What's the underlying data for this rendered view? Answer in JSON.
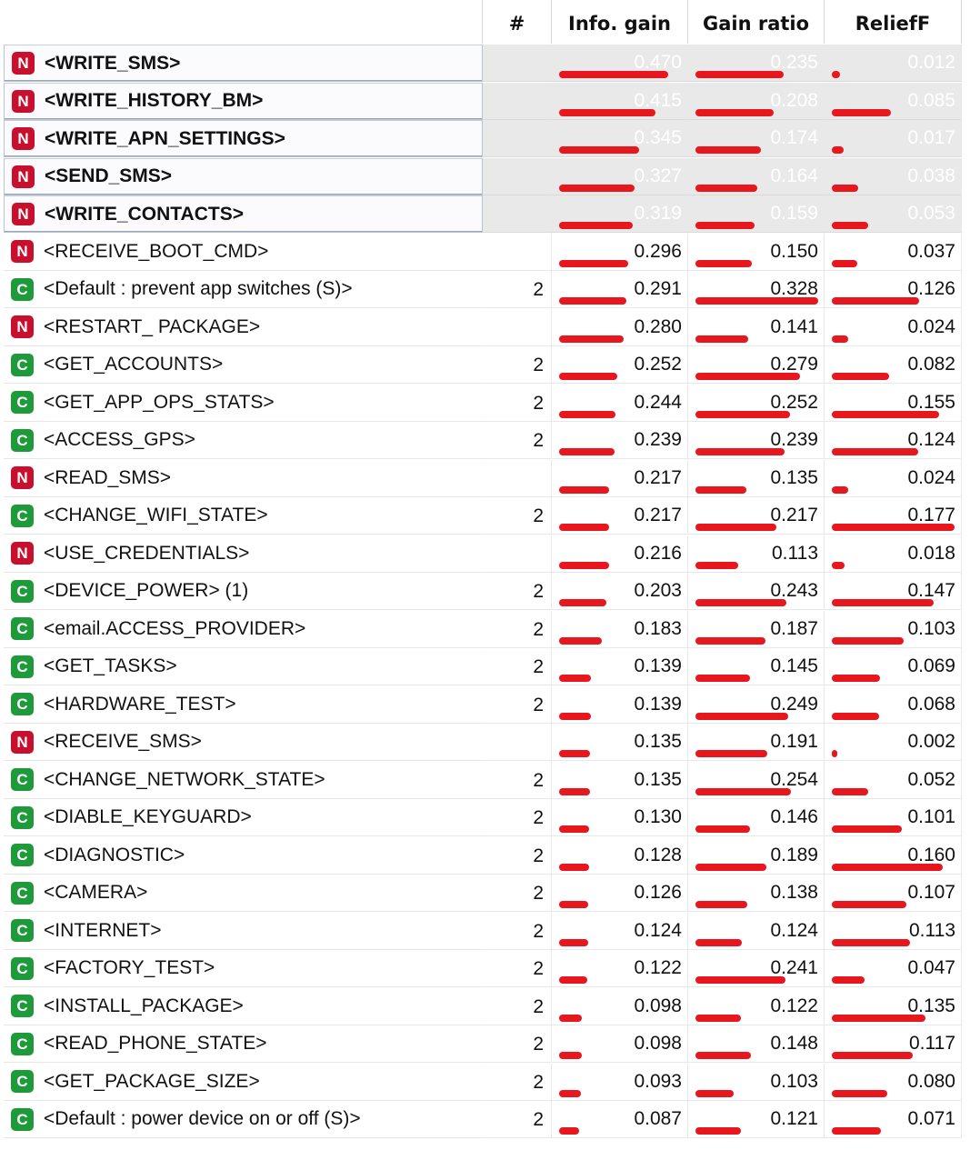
{
  "headers": {
    "name": "",
    "count": "#",
    "info_gain": "Info. gain",
    "gain_ratio": "Gain ratio",
    "relieff": "ReliefF"
  },
  "colors": {
    "bar": "#e8171d",
    "badge_N": "#c8102e",
    "badge_C": "#1f9a3b"
  },
  "rows": [
    {
      "badge": "N",
      "label": "<WRITE_SMS>",
      "count": "",
      "info_gain": "0.470",
      "gain_ratio": "0.235",
      "relieff": "0.012",
      "selected": true
    },
    {
      "badge": "N",
      "label": "<WRITE_HISTORY_BM>",
      "count": "",
      "info_gain": "0.415",
      "gain_ratio": "0.208",
      "relieff": "0.085",
      "selected": true
    },
    {
      "badge": "N",
      "label": "<WRITE_APN_SETTINGS>",
      "count": "",
      "info_gain": "0.345",
      "gain_ratio": "0.174",
      "relieff": "0.017",
      "selected": true
    },
    {
      "badge": "N",
      "label": "<SEND_SMS>",
      "count": "",
      "info_gain": "0.327",
      "gain_ratio": "0.164",
      "relieff": "0.038",
      "selected": true
    },
    {
      "badge": "N",
      "label": "<WRITE_CONTACTS>",
      "count": "",
      "info_gain": "0.319",
      "gain_ratio": "0.159",
      "relieff": "0.053",
      "selected": true
    },
    {
      "badge": "N",
      "label": "<RECEIVE_BOOT_CMD>",
      "count": "",
      "info_gain": "0.296",
      "gain_ratio": "0.150",
      "relieff": "0.037"
    },
    {
      "badge": "C",
      "label": "<Default : prevent app switches (S)>",
      "count": "2",
      "info_gain": "0.291",
      "gain_ratio": "0.328",
      "relieff": "0.126"
    },
    {
      "badge": "N",
      "label": "<RESTART_ PACKAGE>",
      "count": "",
      "info_gain": "0.280",
      "gain_ratio": "0.141",
      "relieff": "0.024"
    },
    {
      "badge": "C",
      "label": "<GET_ACCOUNTS>",
      "count": "2",
      "info_gain": "0.252",
      "gain_ratio": "0.279",
      "relieff": "0.082"
    },
    {
      "badge": "C",
      "label": "<GET_APP_OPS_STATS>",
      "count": "2",
      "info_gain": "0.244",
      "gain_ratio": "0.252",
      "relieff": "0.155"
    },
    {
      "badge": "C",
      "label": "<ACCESS_GPS>",
      "count": "2",
      "info_gain": "0.239",
      "gain_ratio": "0.239",
      "relieff": "0.124"
    },
    {
      "badge": "N",
      "label": "<READ_SMS>",
      "count": "",
      "info_gain": "0.217",
      "gain_ratio": "0.135",
      "relieff": "0.024"
    },
    {
      "badge": "C",
      "label": "<CHANGE_WIFI_STATE>",
      "count": "2",
      "info_gain": "0.217",
      "gain_ratio": "0.217",
      "relieff": "0.177"
    },
    {
      "badge": "N",
      "label": "<USE_CREDENTIALS>",
      "count": "",
      "info_gain": "0.216",
      "gain_ratio": "0.113",
      "relieff": "0.018"
    },
    {
      "badge": "C",
      "label": "<DEVICE_POWER> (1)",
      "count": "2",
      "info_gain": "0.203",
      "gain_ratio": "0.243",
      "relieff": "0.147"
    },
    {
      "badge": "C",
      "label": "<email.ACCESS_PROVIDER>",
      "count": "2",
      "info_gain": "0.183",
      "gain_ratio": "0.187",
      "relieff": "0.103"
    },
    {
      "badge": "C",
      "label": "<GET_TASKS>",
      "count": "2",
      "info_gain": "0.139",
      "gain_ratio": "0.145",
      "relieff": "0.069"
    },
    {
      "badge": "C",
      "label": "<HARDWARE_TEST>",
      "count": "2",
      "info_gain": "0.139",
      "gain_ratio": "0.249",
      "relieff": "0.068"
    },
    {
      "badge": "N",
      "label": "<RECEIVE_SMS>",
      "count": "",
      "info_gain": "0.135",
      "gain_ratio": "0.191",
      "relieff": "0.002"
    },
    {
      "badge": "C",
      "label": "<CHANGE_NETWORK_STATE>",
      "count": "2",
      "info_gain": "0.135",
      "gain_ratio": "0.254",
      "relieff": "0.052"
    },
    {
      "badge": "C",
      "label": "<DIABLE_KEYGUARD>",
      "count": "2",
      "info_gain": "0.130",
      "gain_ratio": "0.146",
      "relieff": "0.101"
    },
    {
      "badge": "C",
      "label": "<DIAGNOSTIC>",
      "count": "2",
      "info_gain": "0.128",
      "gain_ratio": "0.189",
      "relieff": "0.160"
    },
    {
      "badge": "C",
      "label": "<CAMERA>",
      "count": "2",
      "info_gain": "0.126",
      "gain_ratio": "0.138",
      "relieff": "0.107"
    },
    {
      "badge": "C",
      "label": "<INTERNET>",
      "count": "2",
      "info_gain": "0.124",
      "gain_ratio": "0.124",
      "relieff": "0.113"
    },
    {
      "badge": "C",
      "label": "<FACTORY_TEST>",
      "count": "2",
      "info_gain": "0.122",
      "gain_ratio": "0.241",
      "relieff": "0.047"
    },
    {
      "badge": "C",
      "label": "<INSTALL_PACKAGE>",
      "count": "2",
      "info_gain": "0.098",
      "gain_ratio": "0.122",
      "relieff": "0.135"
    },
    {
      "badge": "C",
      "label": "<READ_PHONE_STATE>",
      "count": "2",
      "info_gain": "0.098",
      "gain_ratio": "0.148",
      "relieff": "0.117"
    },
    {
      "badge": "C",
      "label": "<GET_PACKAGE_SIZE>",
      "count": "2",
      "info_gain": "0.093",
      "gain_ratio": "0.103",
      "relieff": "0.080"
    },
    {
      "badge": "C",
      "label": "<Default : power device on or off (S)>",
      "count": "2",
      "info_gain": "0.087",
      "gain_ratio": "0.121",
      "relieff": "0.071"
    }
  ]
}
